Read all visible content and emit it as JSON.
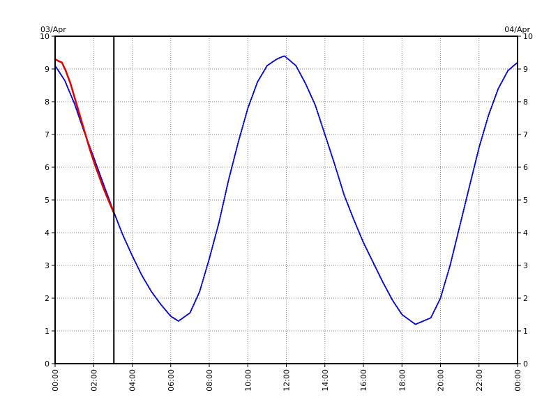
{
  "chart_data": {
    "type": "line",
    "date_left": "03/Apr",
    "date_right": "04/Apr",
    "x_unit": "hours",
    "xlim": [
      0,
      24
    ],
    "ylim": [
      0,
      10
    ],
    "y_ticks": [
      "0",
      "1",
      "2",
      "3",
      "4",
      "5",
      "6",
      "7",
      "8",
      "9",
      "10"
    ],
    "x_ticks": [
      {
        "value": 0,
        "label": "00:00"
      },
      {
        "value": 2,
        "label": "02:00"
      },
      {
        "value": 4,
        "label": "04:00"
      },
      {
        "value": 6,
        "label": "06:00"
      },
      {
        "value": 8,
        "label": "08:00"
      },
      {
        "value": 10,
        "label": "10:00"
      },
      {
        "value": 12,
        "label": "12:00"
      },
      {
        "value": 14,
        "label": "14:00"
      },
      {
        "value": 16,
        "label": "16:00"
      },
      {
        "value": 18,
        "label": "18:00"
      },
      {
        "value": 20,
        "label": "20:00"
      },
      {
        "value": 22,
        "label": "22:00"
      },
      {
        "value": 24,
        "label": "00:00"
      }
    ],
    "grid": true,
    "current_time_marker": 3.05,
    "series": [
      {
        "color": "#0000cc",
        "style": "dotted",
        "x": [
          0,
          0.5,
          1,
          1.5,
          2,
          2.5,
          3,
          3.5,
          4,
          4.5,
          5,
          5.5,
          6,
          6.4,
          7,
          7.5,
          8,
          8.5,
          9,
          9.5,
          10,
          10.5,
          11,
          11.5,
          11.9,
          12.5,
          13,
          13.5,
          14,
          14.5,
          15,
          15.5,
          16,
          16.5,
          17,
          17.5,
          18,
          18.7,
          19.5,
          20,
          20.5,
          21,
          21.5,
          22,
          22.5,
          23,
          23.5,
          24
        ],
        "y": [
          9.1,
          8.65,
          7.95,
          7.1,
          6.3,
          5.5,
          4.7,
          3.95,
          3.3,
          2.7,
          2.2,
          1.8,
          1.45,
          1.3,
          1.55,
          2.2,
          3.2,
          4.3,
          5.6,
          6.75,
          7.8,
          8.6,
          9.1,
          9.3,
          9.4,
          9.1,
          8.55,
          7.9,
          7.0,
          6.1,
          5.15,
          4.4,
          3.7,
          3.1,
          2.5,
          1.95,
          1.5,
          1.2,
          1.4,
          2.0,
          3.0,
          4.2,
          5.4,
          6.6,
          7.6,
          8.4,
          8.95,
          9.2
        ]
      },
      {
        "color": "#dd0000",
        "style": "solid",
        "x": [
          0,
          0.15,
          0.35,
          0.55,
          0.8,
          1.05,
          1.3,
          1.55,
          1.8,
          2.05,
          2.3,
          2.55,
          2.8,
          3.05
        ],
        "y": [
          9.3,
          9.25,
          9.2,
          8.95,
          8.55,
          8.05,
          7.55,
          7.05,
          6.55,
          6.1,
          5.7,
          5.3,
          4.95,
          4.6
        ]
      }
    ]
  }
}
